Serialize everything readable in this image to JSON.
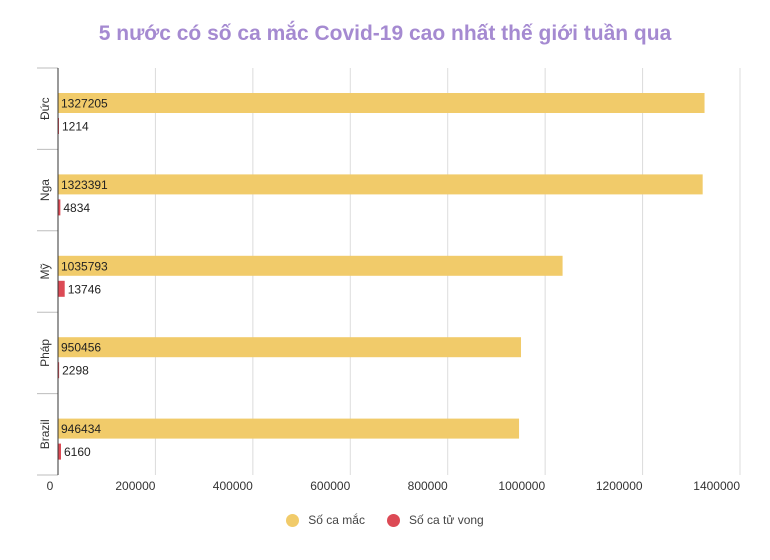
{
  "chart_data": {
    "type": "bar",
    "orientation": "horizontal",
    "title": "5 nước có số ca mắc Covid-19 cao nhất thế giới tuần qua",
    "categories": [
      "Đức",
      "Nga",
      "Mỹ",
      "Pháp",
      "Brazil"
    ],
    "series": [
      {
        "name": "Số ca mắc",
        "color": "#f1cb6a",
        "values": [
          1327205,
          1323391,
          1035793,
          950456,
          946434
        ]
      },
      {
        "name": "Số ca tử vong",
        "color": "#dc4a55",
        "values": [
          1214,
          4834,
          13746,
          2298,
          6160
        ]
      }
    ],
    "x_ticks": [
      "0",
      "200000",
      "400000",
      "600000",
      "800000",
      "1000000",
      "1200000",
      "1400000"
    ],
    "xlim": [
      0,
      1400000
    ],
    "grid": true,
    "legend_position": "bottom"
  }
}
